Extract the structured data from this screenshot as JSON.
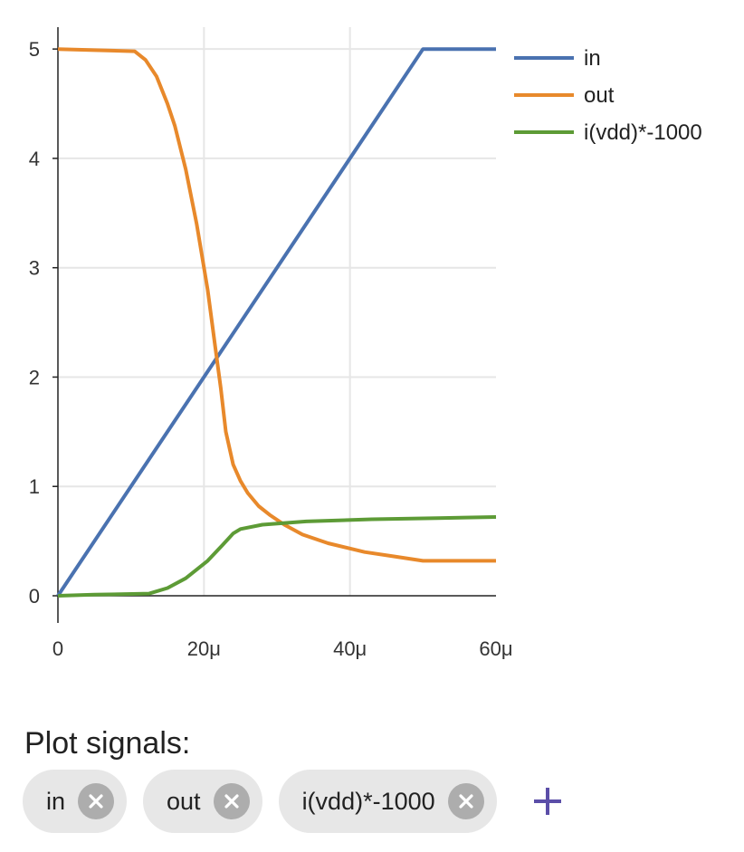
{
  "chart_data": {
    "type": "line",
    "title": "",
    "xlabel": "",
    "ylabel": "",
    "xlim": [
      0,
      60
    ],
    "ylim": [
      0,
      5.2
    ],
    "x_ticks": [
      {
        "value": 0,
        "label": "0"
      },
      {
        "value": 20,
        "label": "20μ"
      },
      {
        "value": 40,
        "label": "40μ"
      },
      {
        "value": 60,
        "label": "60μ"
      }
    ],
    "y_ticks": [
      {
        "value": 0,
        "label": "0"
      },
      {
        "value": 1,
        "label": "1"
      },
      {
        "value": 2,
        "label": "2"
      },
      {
        "value": 3,
        "label": "3"
      },
      {
        "value": 4,
        "label": "4"
      },
      {
        "value": 5,
        "label": "5"
      }
    ],
    "grid": true,
    "legend_position": "top-right",
    "series": [
      {
        "name": "in",
        "color": "#4a72b0",
        "points": [
          [
            0,
            0
          ],
          [
            50,
            5
          ],
          [
            60,
            5
          ]
        ]
      },
      {
        "name": "out",
        "color": "#e8892b",
        "points": [
          [
            0,
            5
          ],
          [
            5,
            4.99
          ],
          [
            10.5,
            4.98
          ],
          [
            12,
            4.9
          ],
          [
            13.5,
            4.75
          ],
          [
            15,
            4.5
          ],
          [
            16,
            4.3
          ],
          [
            17.5,
            3.9
          ],
          [
            19,
            3.4
          ],
          [
            20.5,
            2.8
          ],
          [
            21.5,
            2.3
          ],
          [
            22.3,
            1.9
          ],
          [
            23,
            1.5
          ],
          [
            24,
            1.2
          ],
          [
            25,
            1.05
          ],
          [
            26,
            0.94
          ],
          [
            27.5,
            0.82
          ],
          [
            29,
            0.74
          ],
          [
            31,
            0.65
          ],
          [
            33.5,
            0.56
          ],
          [
            37,
            0.48
          ],
          [
            42,
            0.4
          ],
          [
            46,
            0.36
          ],
          [
            50,
            0.32
          ],
          [
            55,
            0.32
          ],
          [
            60,
            0.32
          ]
        ]
      },
      {
        "name": "i(vdd)*-1000",
        "color": "#5d9b36",
        "points": [
          [
            0,
            0
          ],
          [
            5,
            0.01
          ],
          [
            12.5,
            0.02
          ],
          [
            15,
            0.07
          ],
          [
            17.5,
            0.16
          ],
          [
            20.5,
            0.32
          ],
          [
            22.5,
            0.46
          ],
          [
            24,
            0.57
          ],
          [
            25,
            0.61
          ],
          [
            28,
            0.65
          ],
          [
            34,
            0.68
          ],
          [
            43,
            0.7
          ],
          [
            52,
            0.71
          ],
          [
            60,
            0.72
          ]
        ]
      }
    ]
  },
  "plot_signals": {
    "heading": "Plot signals:",
    "chips": [
      {
        "label": "in",
        "remove_icon": "close-circle-icon"
      },
      {
        "label": "out",
        "remove_icon": "close-circle-icon"
      },
      {
        "label": "i(vdd)*-1000",
        "remove_icon": "close-circle-icon"
      }
    ],
    "add_icon": "plus-icon",
    "accent_color": "#5b4ea8"
  }
}
